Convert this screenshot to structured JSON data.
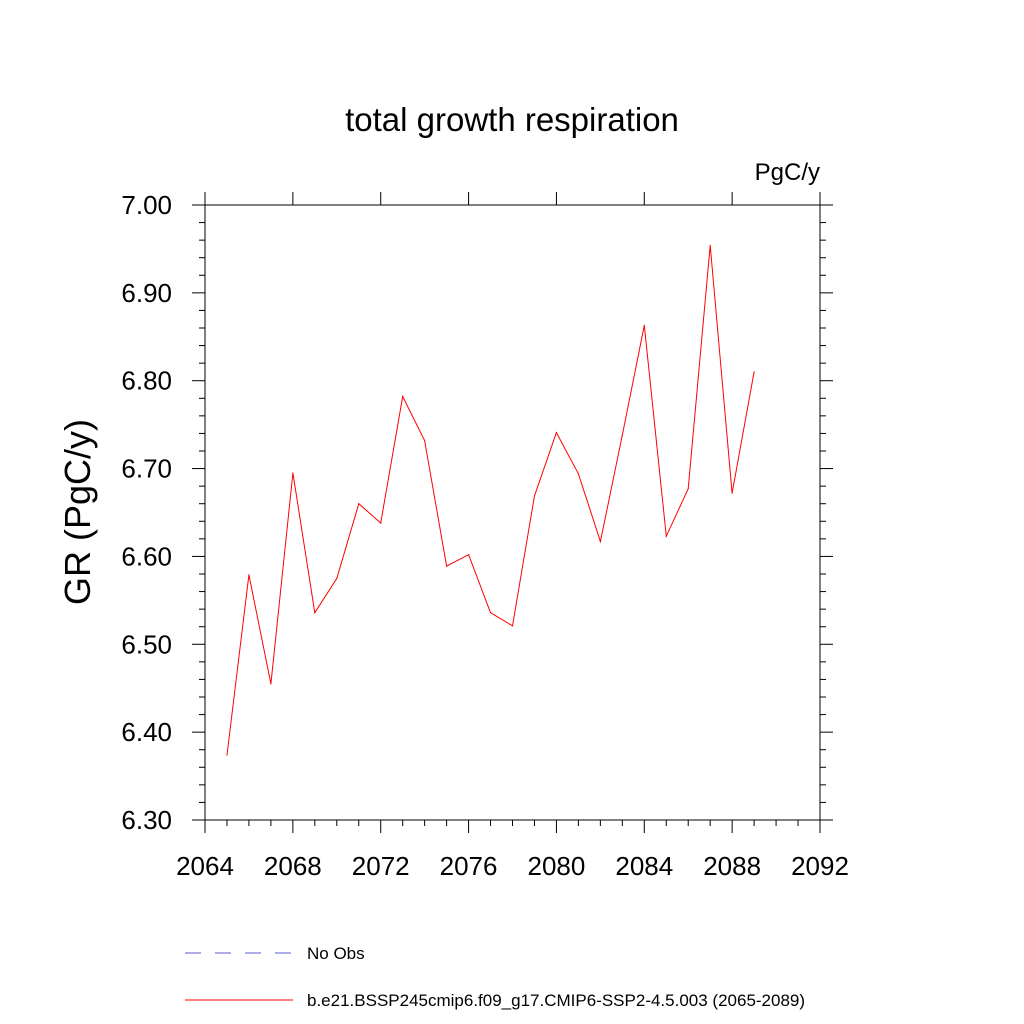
{
  "chart_data": {
    "type": "line",
    "title": "total growth respiration",
    "units": "PgC/y",
    "ylabel": "GR  (PgC/y)",
    "xlabel": "",
    "xlim": [
      2064,
      2092
    ],
    "ylim": [
      6.3,
      7.0
    ],
    "x_ticks": [
      "2064",
      "2068",
      "2072",
      "2076",
      "2080",
      "2084",
      "2088",
      "2092"
    ],
    "y_ticks": [
      "6.30",
      "6.40",
      "6.50",
      "6.60",
      "6.70",
      "6.80",
      "6.90",
      "7.00"
    ],
    "grid": false,
    "legend_position": "bottom",
    "series": [
      {
        "name": "b.e21.BSSP245cmip6.f09_g17.CMIP6-SSP2-4.5.003 (2065-2089)",
        "color": "#ff0000",
        "style": "solid",
        "x": [
          2065,
          2066,
          2067,
          2068,
          2069,
          2070,
          2071,
          2072,
          2073,
          2074,
          2075,
          2076,
          2077,
          2078,
          2079,
          2080,
          2081,
          2082,
          2083,
          2084,
          2085,
          2086,
          2087,
          2088,
          2089
        ],
        "values": [
          6.374,
          6.579,
          6.455,
          6.695,
          6.536,
          6.575,
          6.66,
          6.638,
          6.782,
          6.732,
          6.589,
          6.602,
          6.536,
          6.521,
          6.669,
          6.741,
          6.694,
          6.617,
          6.738,
          6.863,
          6.623,
          6.677,
          6.954,
          6.672,
          6.81
        ]
      }
    ],
    "legend": [
      {
        "label": "No Obs",
        "color": "#5a5acc",
        "style": "dashed"
      },
      {
        "label": "b.e21.BSSP245cmip6.f09_g17.CMIP6-SSP2-4.5.003 (2065-2089)",
        "color": "#ff0000",
        "style": "solid"
      }
    ]
  }
}
